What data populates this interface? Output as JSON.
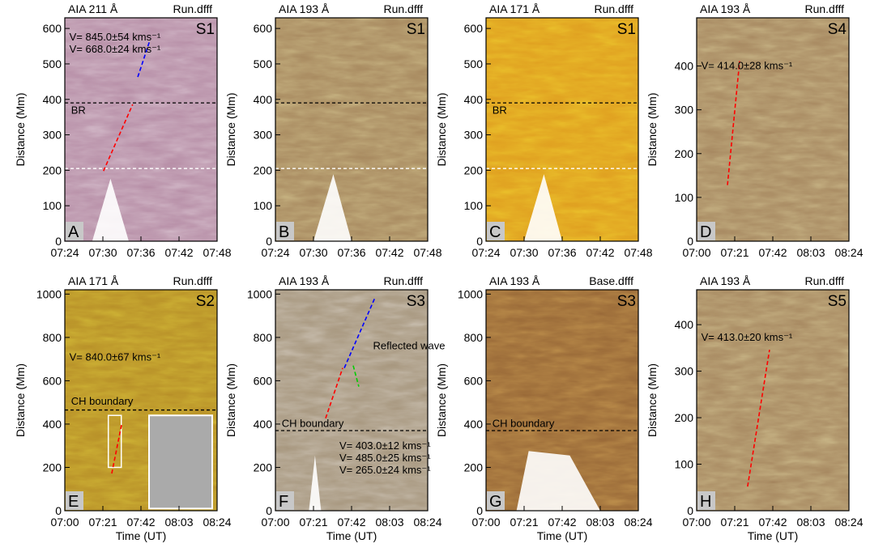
{
  "chart_data": [
    {
      "type": "image",
      "title": "AIA 211 Å",
      "subtitle": "Run.dfff",
      "label": "S1",
      "panel": "A",
      "color": "#b890a8",
      "ylabel": "Distance (Mm)",
      "xlim": [
        24,
        48
      ],
      "xticks": [
        {
          "value": 24,
          "label": "07:24"
        },
        {
          "value": 30,
          "label": "07:30"
        },
        {
          "value": 36,
          "label": "07:36"
        },
        {
          "value": 42,
          "label": "07:42"
        },
        {
          "value": 48,
          "label": "07:48"
        }
      ],
      "ylim": [
        0,
        630
      ],
      "yticks": [
        0,
        100,
        200,
        300,
        400,
        500,
        600
      ],
      "hlines": [
        390,
        205
      ],
      "annotations": [
        "BR"
      ],
      "series": [
        {
          "name": "V= 845.0±54 kms⁻¹",
          "color": "#0000ff",
          "x": [
            35.5,
            37.4
          ],
          "values": [
            463,
            566
          ]
        },
        {
          "name": "V= 668.0±24 kms⁻¹",
          "color": "#ff0000",
          "x": [
            30.1,
            34.7
          ],
          "values": [
            198,
            386
          ]
        }
      ]
    },
    {
      "type": "image",
      "title": "AIA 193 Å",
      "subtitle": "Run.dfff",
      "label": "S1",
      "panel": "B",
      "color": "#a88a60",
      "ylabel": "Distance (Mm)",
      "xlim": [
        24,
        48
      ],
      "xticks": [
        {
          "value": 24,
          "label": "07:24"
        },
        {
          "value": 30,
          "label": "07:30"
        },
        {
          "value": 36,
          "label": "07:36"
        },
        {
          "value": 42,
          "label": "07:42"
        },
        {
          "value": 48,
          "label": "07:48"
        }
      ],
      "ylim": [
        0,
        630
      ],
      "yticks": [
        0,
        100,
        200,
        300,
        400,
        500,
        600
      ],
      "hlines": [
        390,
        205
      ]
    },
    {
      "type": "image",
      "title": "AIA 171 Å",
      "subtitle": "Run.dfff",
      "label": "S1",
      "panel": "C",
      "color": "#e0a020",
      "ylabel": "Distance (Mm)",
      "xlim": [
        24,
        48
      ],
      "xticks": [
        {
          "value": 24,
          "label": "07:24"
        },
        {
          "value": 30,
          "label": "07:30"
        },
        {
          "value": 36,
          "label": "07:36"
        },
        {
          "value": 42,
          "label": "07:42"
        },
        {
          "value": 48,
          "label": "07:48"
        }
      ],
      "ylim": [
        0,
        630
      ],
      "yticks": [
        0,
        100,
        200,
        300,
        400,
        500,
        600
      ],
      "hlines": [
        390,
        205
      ],
      "annotations": [
        "BR"
      ]
    },
    {
      "type": "image",
      "title": "AIA 193 Å",
      "subtitle": "Run.dfff",
      "label": "S4",
      "panel": "D",
      "color": "#a88a62",
      "ylabel": "Distance (Mm)",
      "xlim": [
        0,
        84
      ],
      "xticks": [
        {
          "value": 0,
          "label": "07:00"
        },
        {
          "value": 21,
          "label": "07:21"
        },
        {
          "value": 42,
          "label": "07:42"
        },
        {
          "value": 63,
          "label": "08:03"
        },
        {
          "value": 84,
          "label": "08:24"
        }
      ],
      "ylim": [
        0,
        510
      ],
      "yticks": [
        0,
        100,
        200,
        300,
        400
      ],
      "series": [
        {
          "name": "V= 414.0±28 kms⁻¹",
          "color": "#ff0000",
          "x": [
            17.0,
            23.7
          ],
          "values": [
            128,
            411
          ]
        }
      ]
    },
    {
      "type": "image",
      "title": "AIA 171 Å",
      "subtitle": "Run.dfff",
      "label": "S2",
      "panel": "E",
      "color": "#b89028",
      "ylabel": "Distance (Mm)",
      "xlabel": "Time (UT)",
      "xlim": [
        0,
        84
      ],
      "xticks": [
        {
          "value": 0,
          "label": "07:00"
        },
        {
          "value": 21,
          "label": "07:21"
        },
        {
          "value": 42,
          "label": "07:42"
        },
        {
          "value": 63,
          "label": "08:03"
        },
        {
          "value": 84,
          "label": "08:24"
        }
      ],
      "ylim": [
        0,
        1020
      ],
      "yticks": [
        0,
        200,
        400,
        600,
        800,
        1000
      ],
      "hlines": [
        465
      ],
      "annotations": [
        "CH boundary"
      ],
      "series": [
        {
          "name": "V= 840.0±67 kms⁻¹",
          "color": "#ff0000",
          "x": [
            25.9,
            31.3
          ],
          "values": [
            172,
            397
          ]
        }
      ]
    },
    {
      "type": "image",
      "title": "AIA 193 Å",
      "subtitle": "Run.dfff",
      "label": "S3",
      "panel": "F",
      "color": "#a89880",
      "ylabel": "Distance (Mm)",
      "xlabel": "Time (UT)",
      "xlim": [
        0,
        84
      ],
      "xticks": [
        {
          "value": 0,
          "label": "07:00"
        },
        {
          "value": 21,
          "label": "07:21"
        },
        {
          "value": 42,
          "label": "07:42"
        },
        {
          "value": 63,
          "label": "08:03"
        },
        {
          "value": 84,
          "label": "08:24"
        }
      ],
      "ylim": [
        0,
        1020
      ],
      "yticks": [
        0,
        200,
        400,
        600,
        800,
        1000
      ],
      "hlines": [
        370
      ],
      "annotations": [
        "CH boundary",
        "Reflected wave"
      ],
      "series": [
        {
          "name": "V= 403.0±12 kms⁻¹",
          "color": "#ff0000",
          "x": [
            27.7,
            37.1
          ],
          "values": [
            427,
            659
          ]
        },
        {
          "name": "V= 485.0±25 kms⁻¹",
          "color": "#0000ff",
          "x": [
            38,
            55
          ],
          "values": [
            659,
            985
          ]
        },
        {
          "name": "V= 265.0±24 kms⁻¹",
          "color": "#00cc00",
          "x": [
            42.9,
            46
          ],
          "values": [
            670,
            573
          ]
        }
      ]
    },
    {
      "type": "image",
      "title": "AIA 193 Å",
      "subtitle": "Base.dfff",
      "label": "S3",
      "panel": "G",
      "color": "#9a6a38",
      "ylabel": "Distance (Mm)",
      "xlabel": "Time (UT)",
      "xlim": [
        0,
        84
      ],
      "xticks": [
        {
          "value": 0,
          "label": "07:00"
        },
        {
          "value": 21,
          "label": "07:21"
        },
        {
          "value": 42,
          "label": "07:42"
        },
        {
          "value": 63,
          "label": "08:03"
        },
        {
          "value": 84,
          "label": "08:24"
        }
      ],
      "ylim": [
        0,
        1020
      ],
      "yticks": [
        0,
        200,
        400,
        600,
        800,
        1000
      ],
      "hlines": [
        370
      ],
      "annotations": [
        "CH boundary"
      ]
    },
    {
      "type": "image",
      "title": "AIA 193 Å",
      "subtitle": "Run.dfff",
      "label": "S5",
      "panel": "H",
      "color": "#a88a62",
      "ylabel": "Distance (Mm)",
      "xlabel": "Time (UT)",
      "xlim": [
        0,
        84
      ],
      "xticks": [
        {
          "value": 0,
          "label": "07:00"
        },
        {
          "value": 21,
          "label": "07:21"
        },
        {
          "value": 42,
          "label": "07:42"
        },
        {
          "value": 63,
          "label": "08:03"
        },
        {
          "value": 84,
          "label": "08:24"
        }
      ],
      "ylim": [
        0,
        475
      ],
      "yticks": [
        0,
        100,
        200,
        300,
        400
      ],
      "series": [
        {
          "name": "V= 413.0±20 kms⁻¹",
          "color": "#ff0000",
          "x": [
            28.1,
            40.2
          ],
          "values": [
            52,
            346
          ]
        }
      ]
    }
  ]
}
